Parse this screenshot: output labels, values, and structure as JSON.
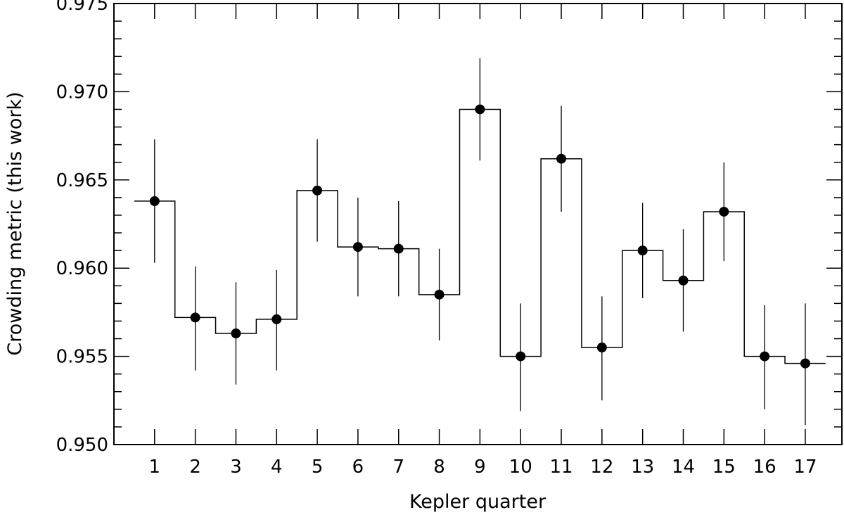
{
  "chart_data": {
    "type": "scatter",
    "xlabel": "Kepler quarter",
    "ylabel": "Crowding metric (this work)",
    "xlim": [
      0,
      17.9
    ],
    "ylim": [
      0.95,
      0.975
    ],
    "xticks": [
      1,
      2,
      3,
      4,
      5,
      6,
      7,
      8,
      9,
      10,
      11,
      12,
      13,
      14,
      15,
      16,
      17
    ],
    "yticks": [
      "0.950",
      "0.955",
      "0.960",
      "0.965",
      "0.970",
      "0.975"
    ],
    "grid": false,
    "step_line": true,
    "series": [
      {
        "x": [
          1,
          2,
          3,
          4,
          5,
          6,
          7,
          8,
          9,
          10,
          11,
          12,
          13,
          14,
          15,
          16,
          17
        ],
        "y": [
          0.9638,
          0.9572,
          0.9563,
          0.9571,
          0.9644,
          0.9612,
          0.9611,
          0.9585,
          0.969,
          0.955,
          0.9662,
          0.9555,
          0.961,
          0.9593,
          0.9632,
          0.955,
          0.9546
        ],
        "yerr_low": [
          0.9603,
          0.9542,
          0.9534,
          0.9542,
          0.9615,
          0.9584,
          0.9584,
          0.9559,
          0.9661,
          0.9519,
          0.9632,
          0.9525,
          0.9583,
          0.9564,
          0.9604,
          0.952,
          0.9511
        ],
        "yerr_high": [
          0.9673,
          0.9601,
          0.9592,
          0.9599,
          0.9673,
          0.964,
          0.9638,
          0.9611,
          0.9719,
          0.958,
          0.9692,
          0.9584,
          0.9637,
          0.9622,
          0.966,
          0.9579,
          0.958
        ]
      }
    ]
  }
}
